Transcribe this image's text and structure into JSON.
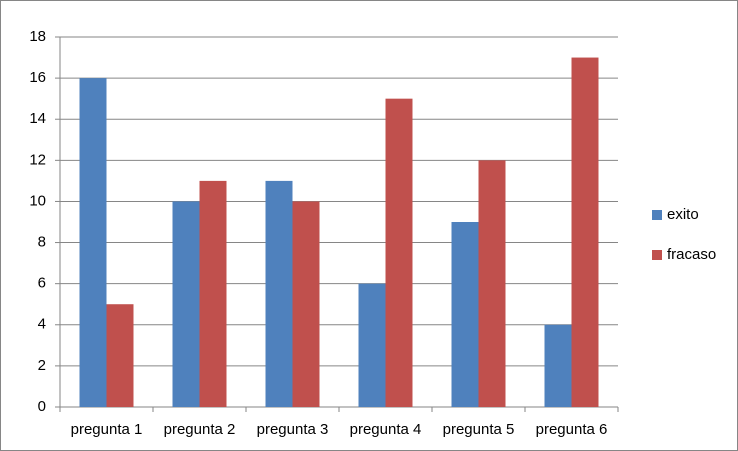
{
  "chart_data": {
    "type": "bar",
    "categories": [
      "pregunta 1",
      "pregunta 2",
      "pregunta 3",
      "pregunta 4",
      "pregunta 5",
      "pregunta 6"
    ],
    "series": [
      {
        "name": "exito",
        "color": "#4f81bd",
        "values": [
          16,
          10,
          11,
          6,
          9,
          4
        ]
      },
      {
        "name": "fracaso",
        "color": "#c0504d",
        "values": [
          5,
          11,
          10,
          15,
          12,
          17
        ]
      }
    ],
    "ylim": [
      0,
      18
    ],
    "yticks": [
      0,
      2,
      4,
      6,
      8,
      10,
      12,
      14,
      16,
      18
    ],
    "grid": true,
    "legend": "right"
  }
}
